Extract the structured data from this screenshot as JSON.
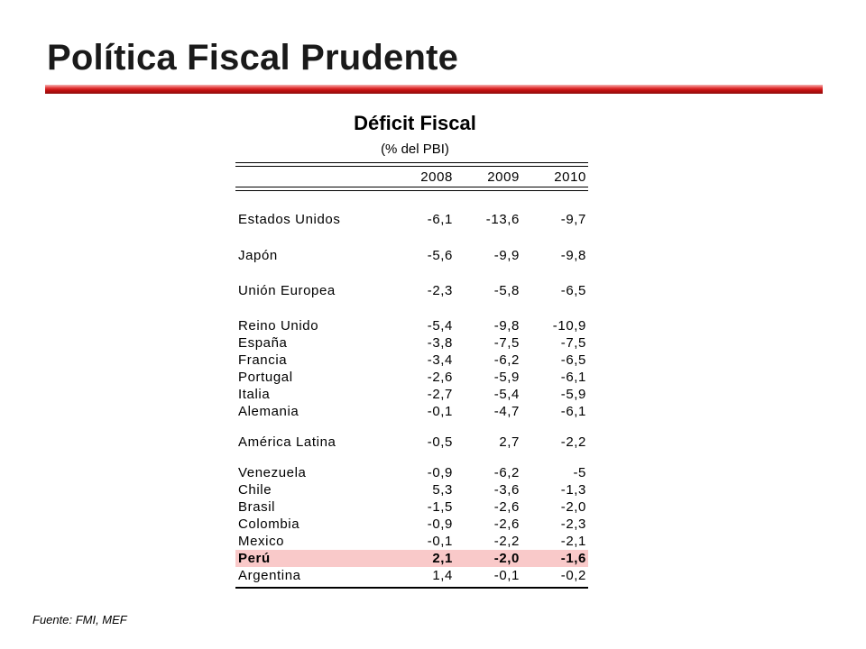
{
  "slide": {
    "title": "Política Fiscal Prudente"
  },
  "table": {
    "title": "Déficit Fiscal",
    "subtitle": "(% del PBI)",
    "years": [
      "2008",
      "2009",
      "2010"
    ],
    "rows": [
      {
        "country": "Estados Unidos",
        "v2008": "-6,1",
        "v2009": "-13,6",
        "v2010": "-9,7"
      },
      {
        "country": "Japón",
        "v2008": "-5,6",
        "v2009": "-9,9",
        "v2010": "-9,8"
      },
      {
        "country": "Unión Europea",
        "v2008": "-2,3",
        "v2009": "-5,8",
        "v2010": "-6,5"
      },
      {
        "country": "Reino Unido",
        "v2008": "-5,4",
        "v2009": "-9,8",
        "v2010": "-10,9"
      },
      {
        "country": "España",
        "v2008": "-3,8",
        "v2009": "-7,5",
        "v2010": "-7,5"
      },
      {
        "country": "Francia",
        "v2008": "-3,4",
        "v2009": "-6,2",
        "v2010": "-6,5"
      },
      {
        "country": "Portugal",
        "v2008": "-2,6",
        "v2009": "-5,9",
        "v2010": "-6,1"
      },
      {
        "country": "Italia",
        "v2008": "-2,7",
        "v2009": "-5,4",
        "v2010": "-5,9"
      },
      {
        "country": "Alemania",
        "v2008": "-0,1",
        "v2009": "-4,7",
        "v2010": "-6,1"
      },
      {
        "country": "América Latina",
        "v2008": "-0,5",
        "v2009": "2,7",
        "v2010": "-2,2"
      },
      {
        "country": "Venezuela",
        "v2008": "-0,9",
        "v2009": "-6,2",
        "v2010": "-5"
      },
      {
        "country": "Chile",
        "v2008": "5,3",
        "v2009": "-3,6",
        "v2010": "-1,3"
      },
      {
        "country": "Brasil",
        "v2008": "-1,5",
        "v2009": "-2,6",
        "v2010": "-2,0"
      },
      {
        "country": "Colombia",
        "v2008": "-0,9",
        "v2009": "-2,6",
        "v2010": "-2,3"
      },
      {
        "country": "Mexico",
        "v2008": "-0,1",
        "v2009": "-2,2",
        "v2010": "-2,1"
      },
      {
        "country": "Perú",
        "v2008": "2,1",
        "v2009": "-2,0",
        "v2010": "-1,6"
      },
      {
        "country": "Argentina",
        "v2008": "1,4",
        "v2009": "-0,1",
        "v2010": "-0,2"
      }
    ],
    "highlight_color": "#f9c9c9"
  },
  "footer": {
    "source": "Fuente:  FMI, MEF"
  },
  "colors": {
    "accent_rule": "#c40f0f"
  }
}
